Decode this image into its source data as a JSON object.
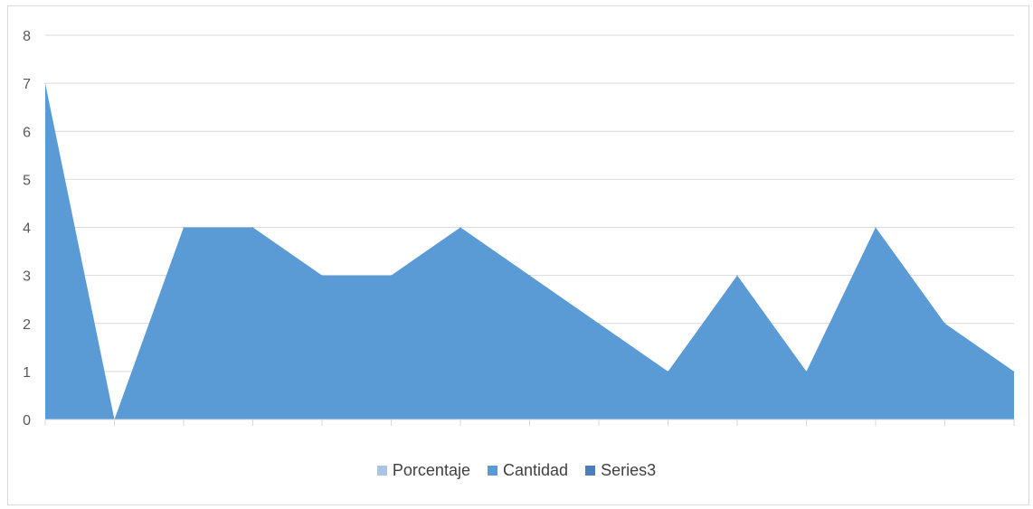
{
  "chart_data": {
    "type": "area",
    "title": "",
    "xlabel": "",
    "ylabel": "",
    "ylim": [
      0,
      8
    ],
    "yticks": [
      "0",
      "1",
      "2",
      "3",
      "4",
      "5",
      "6",
      "7",
      "8"
    ],
    "grid": true,
    "legend_position": "bottom",
    "series": [
      {
        "name": "Porcentaje",
        "color": "#a9c4e6",
        "values": []
      },
      {
        "name": "Cantidad",
        "color": "#5b9bd5",
        "values": [
          7,
          0,
          4,
          4,
          3,
          3,
          4,
          3,
          2,
          1,
          3,
          1,
          4,
          2,
          1
        ]
      },
      {
        "name": "Series3",
        "color": "#4a7ebb",
        "values": []
      }
    ]
  }
}
